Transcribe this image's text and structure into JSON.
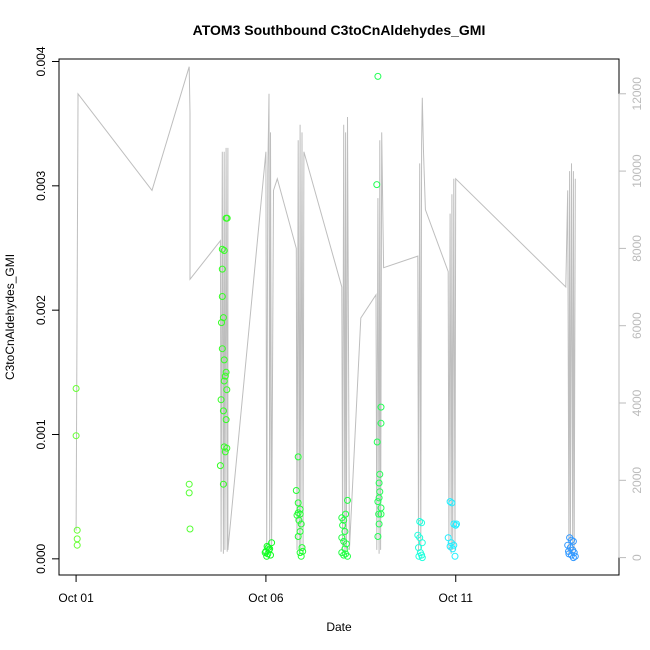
{
  "chart_data": {
    "type": "scatter",
    "title": "ATOM3 Southbound C3toCnAldehydes_GMI",
    "xlabel": "Date",
    "ylabel": "C3toCnAldehydes_GMI",
    "x_ticks": [
      "Oct 01",
      "Oct 06",
      "Oct 11"
    ],
    "x_tick_values": [
      1,
      6,
      11
    ],
    "xlim": [
      0.55,
      15.3
    ],
    "ylim": [
      -0.00013,
      0.00402
    ],
    "y_ticks": [
      "0.000",
      "0.001",
      "0.002",
      "0.003",
      "0.004"
    ],
    "y_tick_values": [
      0,
      0.001,
      0.002,
      0.003,
      0.004
    ],
    "y2_ticks": [
      "0",
      "2000",
      "4000",
      "6000",
      "8000",
      "10000",
      "12000"
    ],
    "y2_tick_values": [
      0,
      2000,
      4000,
      6000,
      8000,
      10000,
      12000
    ],
    "y2lim": [
      -450,
      12900
    ],
    "grid": false,
    "colors": {
      "altitude_line": "#bebebe",
      "axis": "#000000",
      "right_axis": "#bbbbbb"
    },
    "series": [
      {
        "color": "#66ff33",
        "points": [
          [
            1.0,
            0.00137
          ],
          [
            1.0,
            0.00099
          ],
          [
            1.03,
            0.00023
          ],
          [
            1.03,
            0.00016
          ],
          [
            1.03,
            0.00011
          ]
        ]
      },
      {
        "color": "#55ff33",
        "points": [
          [
            3.98,
            0.0006
          ],
          [
            3.98,
            0.00053
          ],
          [
            4.0,
            0.00024
          ]
        ]
      },
      {
        "color": "#33ff22",
        "points": [
          [
            4.85,
            0.00249
          ],
          [
            4.9,
            0.00248
          ],
          [
            4.95,
            0.00274
          ],
          [
            4.98,
            0.00274
          ],
          [
            4.85,
            0.00233
          ],
          [
            4.85,
            0.00211
          ],
          [
            4.88,
            0.00194
          ],
          [
            4.83,
            0.0019
          ],
          [
            4.85,
            0.00169
          ],
          [
            4.9,
            0.0016
          ],
          [
            4.95,
            0.0015
          ],
          [
            4.93,
            0.00147
          ],
          [
            4.9,
            0.00143
          ],
          [
            4.97,
            0.00136
          ],
          [
            4.82,
            0.00128
          ],
          [
            4.88,
            0.00119
          ],
          [
            4.95,
            0.00112
          ],
          [
            4.9,
            0.0009
          ],
          [
            4.97,
            0.00089
          ],
          [
            4.93,
            0.00086
          ],
          [
            4.8,
            0.00075
          ],
          [
            4.88,
            0.0006
          ]
        ]
      },
      {
        "color": "#11ff22",
        "points": [
          [
            6.0,
            6e-05
          ],
          [
            6.05,
            4e-05
          ],
          [
            6.1,
            8e-05
          ],
          [
            6.15,
            0.00013
          ],
          [
            6.02,
            2e-05
          ],
          [
            6.08,
            7e-05
          ],
          [
            5.98,
            5e-05
          ],
          [
            6.12,
            3e-05
          ],
          [
            6.06,
            9e-05
          ],
          [
            6.03,
            0.0001
          ]
        ]
      },
      {
        "color": "#22ff33",
        "points": [
          [
            6.85,
            0.00082
          ],
          [
            6.8,
            0.00055
          ],
          [
            6.85,
            0.00045
          ],
          [
            6.9,
            0.0004
          ],
          [
            6.85,
            0.00037
          ],
          [
            6.82,
            0.00035
          ],
          [
            6.9,
            0.00036
          ],
          [
            6.87,
            0.00031
          ],
          [
            6.93,
            0.00028
          ],
          [
            6.9,
            0.00022
          ],
          [
            6.85,
            0.00018
          ],
          [
            6.95,
            9e-05
          ],
          [
            6.9,
            5e-05
          ],
          [
            6.97,
            6e-05
          ],
          [
            6.93,
            2e-05
          ]
        ]
      },
      {
        "color": "#22ff44",
        "points": [
          [
            8.0,
            0.00033
          ],
          [
            8.05,
            0.00031
          ],
          [
            8.1,
            0.00036
          ],
          [
            8.15,
            0.00047
          ],
          [
            8.02,
            0.00027
          ],
          [
            8.08,
            0.00022
          ],
          [
            8.0,
            0.00017
          ],
          [
            8.05,
            0.00014
          ],
          [
            8.12,
            0.00012
          ],
          [
            8.08,
            8e-05
          ],
          [
            8.0,
            5e-05
          ],
          [
            8.1,
            4e-05
          ],
          [
            8.05,
            3e-05
          ],
          [
            8.15,
            2e-05
          ]
        ]
      },
      {
        "color": "#22ff55",
        "points": [
          [
            8.95,
            0.00388
          ],
          [
            8.92,
            0.00301
          ],
          [
            9.03,
            0.00122
          ],
          [
            9.03,
            0.00109
          ],
          [
            8.93,
            0.00094
          ],
          [
            9.0,
            0.00068
          ],
          [
            8.98,
            0.00061
          ],
          [
            9.0,
            0.00054
          ],
          [
            8.98,
            0.00049
          ],
          [
            8.95,
            0.00046
          ],
          [
            9.03,
            0.00041
          ],
          [
            8.97,
            0.00036
          ],
          [
            9.03,
            0.00036
          ],
          [
            8.98,
            0.00028
          ],
          [
            8.95,
            0.00018
          ]
        ]
      },
      {
        "color": "#22ffdd",
        "points": [
          [
            10.05,
            0.0003
          ],
          [
            10.1,
            0.00029
          ],
          [
            10.0,
            0.00019
          ],
          [
            10.05,
            0.00017
          ],
          [
            10.12,
            0.00013
          ],
          [
            10.02,
            9e-05
          ],
          [
            10.07,
            5e-05
          ],
          [
            10.1,
            3e-05
          ],
          [
            10.03,
            2e-05
          ],
          [
            10.12,
            1e-05
          ]
        ]
      },
      {
        "color": "#22eeff",
        "points": [
          [
            10.85,
            0.00046
          ],
          [
            10.9,
            0.00045
          ],
          [
            10.95,
            0.00028
          ],
          [
            11.0,
            0.00027
          ],
          [
            11.02,
            0.00028
          ],
          [
            10.8,
            0.00017
          ],
          [
            10.88,
            0.00013
          ],
          [
            10.95,
            0.00011
          ],
          [
            10.85,
            0.0001
          ],
          [
            10.92,
            8e-05
          ],
          [
            10.98,
            2e-05
          ]
        ]
      },
      {
        "color": "#3399ff",
        "points": [
          [
            14.0,
            0.00017
          ],
          [
            14.05,
            0.00015
          ],
          [
            14.1,
            0.00014
          ],
          [
            13.95,
            0.00011
          ],
          [
            14.02,
            9e-05
          ],
          [
            14.08,
            7e-05
          ],
          [
            14.12,
            5e-05
          ],
          [
            13.98,
            4e-05
          ],
          [
            14.05,
            3e-05
          ],
          [
            14.15,
            2e-05
          ],
          [
            14.1,
            1e-05
          ],
          [
            13.97,
            6e-05
          ]
        ]
      }
    ],
    "altitude": {
      "color": "#bebebe",
      "x": [
        1.0,
        1.05,
        1.05,
        3.0,
        3.98,
        4.0,
        4.0,
        4.8,
        4.82,
        4.85,
        4.88,
        4.9,
        4.92,
        4.95,
        4.98,
        5.0,
        5.0,
        6.0,
        6.02,
        6.05,
        6.08,
        6.1,
        6.12,
        6.15,
        6.2,
        6.3,
        6.8,
        6.82,
        6.85,
        6.88,
        6.9,
        6.92,
        6.95,
        6.98,
        7.0,
        8.0,
        8.02,
        8.05,
        8.08,
        8.1,
        8.12,
        8.15,
        8.2,
        8.5,
        8.9,
        8.92,
        8.95,
        8.98,
        9.0,
        9.02,
        9.05,
        9.1,
        10.0,
        10.02,
        10.05,
        10.08,
        10.1,
        10.12,
        10.15,
        10.2,
        10.8,
        10.82,
        10.85,
        10.88,
        10.9,
        10.92,
        10.95,
        10.98,
        11.0,
        13.9,
        13.95,
        13.98,
        14.0,
        14.02,
        14.05,
        14.08,
        14.1,
        14.12,
        14.15
      ],
      "y": [
        700,
        11800,
        12000,
        9500,
        12700,
        11500,
        7200,
        8200,
        150,
        10500,
        100,
        10500,
        200,
        10600,
        150,
        10600,
        200,
        10500,
        100,
        10000,
        12000,
        200,
        11000,
        200,
        9500,
        9800,
        8000,
        200,
        10800,
        100,
        11200,
        200,
        11000,
        100,
        10500,
        7000,
        200,
        11200,
        100,
        11000,
        200,
        11400,
        200,
        6200,
        6800,
        200,
        9300,
        100,
        10800,
        200,
        11000,
        7500,
        7800,
        150,
        10200,
        200,
        10700,
        11900,
        10500,
        9000,
        7400,
        200,
        8900,
        100,
        9400,
        200,
        9800,
        200,
        9800,
        7000,
        9500,
        100,
        10000,
        200,
        10200,
        100,
        10000,
        200,
        9800
      ]
    }
  }
}
